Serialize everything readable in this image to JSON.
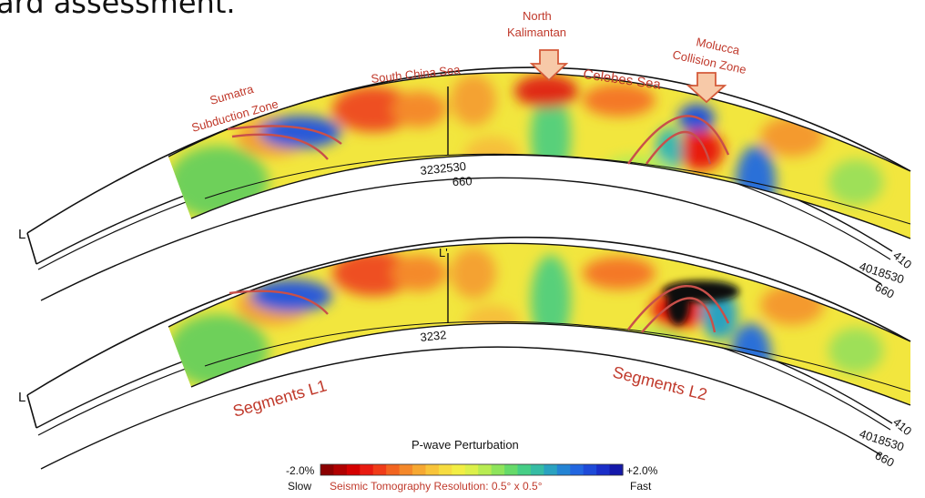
{
  "heading": "ard assessment.",
  "labels": {
    "north_kalimantan_line1": "North",
    "north_kalimantan_line2": "Kalimantan",
    "molucca_line1": "Molucca",
    "molucca_line2": "Collision Zone",
    "sumatra_line1": "Sumatra",
    "sumatra_line2": "Subduction Zone",
    "south_china_sea": "South  China Sea",
    "celebes_sea": "Celebes Sea",
    "segments_l1": "Segments L1",
    "segments_l2": "Segments L2"
  },
  "profile_top": {
    "left_end": "L",
    "middle_depths": "3232530",
    "middle_depth_660": "660",
    "right_depths": "4018530",
    "depth_410": "410",
    "depth_660": "660"
  },
  "profile_bottom": {
    "left_end": "L",
    "middle_marker": "L'",
    "middle_depths": "3232",
    "right_depths": "4018530",
    "depth_410": "410",
    "depth_660": "660"
  },
  "colorbar": {
    "title": "P-wave Perturbation",
    "min_label": "-2.0%",
    "max_label": "+2.0%",
    "slow_label": "Slow",
    "fast_label": "Fast",
    "resolution": "Seismic Tomography Resolution: 0.5° x 0.5°",
    "colors": [
      "#8b0000",
      "#b00000",
      "#d40000",
      "#e81a10",
      "#f03c18",
      "#f26420",
      "#f4882a",
      "#f6a832",
      "#f8c43a",
      "#f6dc40",
      "#f2ee44",
      "#dcf04a",
      "#b8ec52",
      "#8ee45c",
      "#66da6a",
      "#46ce86",
      "#36bca4",
      "#2aa2c0",
      "#2484d4",
      "#2266e0",
      "#1e4ad8",
      "#1a2ec8",
      "#1418aa"
    ]
  }
}
